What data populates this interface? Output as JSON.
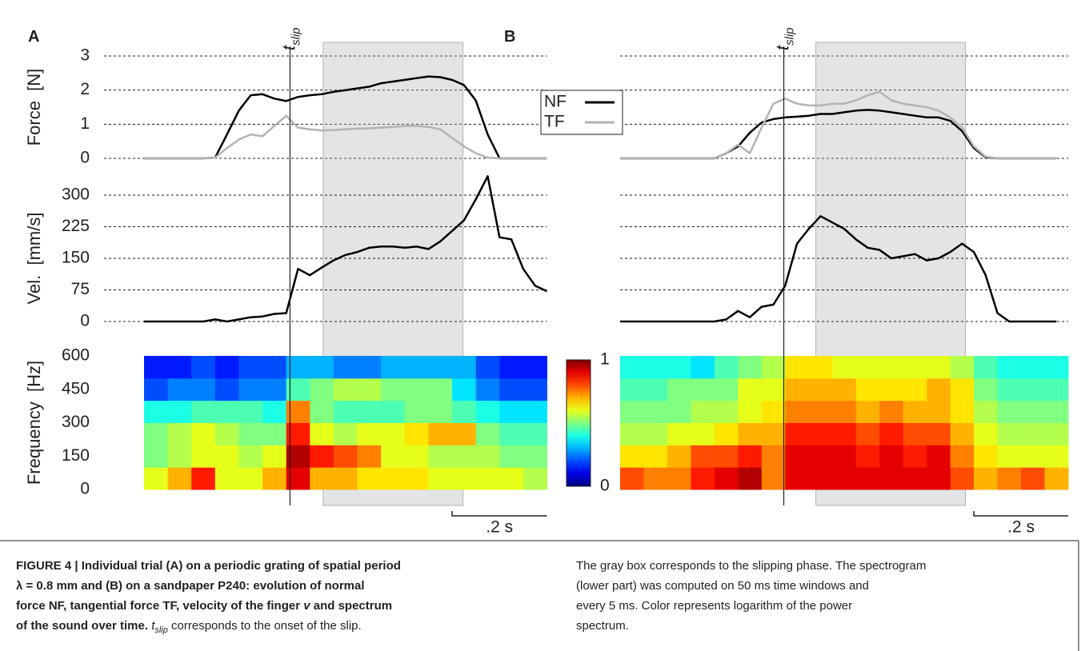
{
  "chart_data": [
    {
      "type": "line",
      "panel_label": "A",
      "ylabel": "Force  [N]",
      "x": [
        0,
        0.025,
        0.05,
        0.075,
        0.1,
        0.125,
        0.15,
        0.175,
        0.2,
        0.225,
        0.25,
        0.275,
        0.3,
        0.325,
        0.35,
        0.375,
        0.4,
        0.425,
        0.45,
        0.475,
        0.5,
        0.525,
        0.55,
        0.575,
        0.6,
        0.625,
        0.65,
        0.675,
        0.7,
        0.725,
        0.75,
        0.775,
        0.8,
        0.825,
        0.85
      ],
      "series": [
        {
          "name": "NF",
          "color": "#000000",
          "values": [
            0,
            0,
            0,
            0,
            0,
            0,
            0.02,
            0.7,
            1.4,
            1.85,
            1.88,
            1.75,
            1.68,
            1.8,
            1.85,
            1.88,
            1.95,
            2.0,
            2.05,
            2.1,
            2.2,
            2.25,
            2.3,
            2.35,
            2.4,
            2.38,
            2.3,
            2.15,
            1.7,
            0.7,
            0,
            0,
            0,
            0,
            0
          ]
        },
        {
          "name": "TF",
          "color": "#b3b3b3",
          "values": [
            0,
            0,
            0,
            0,
            0,
            0,
            0.02,
            0.3,
            0.55,
            0.7,
            0.65,
            0.95,
            1.25,
            0.9,
            0.85,
            0.82,
            0.83,
            0.85,
            0.87,
            0.88,
            0.9,
            0.92,
            0.95,
            0.95,
            0.92,
            0.85,
            0.6,
            0.35,
            0.15,
            0.02,
            0,
            0,
            0,
            0,
            0
          ]
        }
      ],
      "xlim": [
        0,
        0.85
      ],
      "ylim": [
        0,
        3
      ],
      "yticks": [
        0,
        1,
        2,
        3
      ],
      "grid": "dashed",
      "legend": "right",
      "tslip": {
        "x": 0.308,
        "label": [
          "t",
          "slip"
        ]
      },
      "slip_phase": [
        0.378,
        0.673
      ]
    },
    {
      "type": "line",
      "ylabel": "Vel.  [mm/s]",
      "x": [
        0,
        0.025,
        0.05,
        0.075,
        0.1,
        0.125,
        0.15,
        0.175,
        0.2,
        0.225,
        0.25,
        0.275,
        0.3,
        0.325,
        0.35,
        0.375,
        0.4,
        0.425,
        0.45,
        0.475,
        0.5,
        0.525,
        0.55,
        0.575,
        0.6,
        0.625,
        0.65,
        0.675,
        0.7,
        0.725,
        0.75,
        0.775,
        0.8,
        0.825,
        0.85
      ],
      "series": [
        {
          "color": "#000000",
          "values": [
            0,
            0,
            0,
            0,
            0,
            0,
            5,
            0,
            5,
            10,
            12,
            18,
            20,
            125,
            110,
            128,
            145,
            158,
            165,
            175,
            178,
            178,
            175,
            178,
            172,
            190,
            215,
            240,
            290,
            345,
            200,
            195,
            125,
            85,
            72
          ]
        }
      ],
      "xlim": [
        0,
        0.85
      ],
      "ylim": [
        0,
        300
      ],
      "yticks": [
        0,
        75,
        150,
        225,
        300
      ],
      "grid": "dashed"
    },
    {
      "type": "heatmap",
      "ylabel": "Frequency  [Hz]",
      "xbins": [
        0,
        0.05,
        0.1,
        0.15,
        0.2,
        0.25,
        0.3,
        0.35,
        0.4,
        0.45,
        0.5,
        0.55,
        0.6,
        0.65,
        0.7,
        0.75,
        0.8,
        0.85
      ],
      "ybins": [
        0,
        100,
        200,
        300,
        400,
        500,
        600
      ],
      "values": [
        [
          0.6,
          0.7,
          0.85,
          0.6,
          0.6,
          0.7,
          0.9,
          0.7,
          0.7,
          0.65,
          0.65,
          0.65,
          0.6,
          0.6,
          0.6,
          0.6,
          0.55
        ],
        [
          0.5,
          0.55,
          0.6,
          0.6,
          0.55,
          0.6,
          0.95,
          0.85,
          0.8,
          0.75,
          0.6,
          0.6,
          0.55,
          0.55,
          0.55,
          0.5,
          0.5
        ],
        [
          0.5,
          0.55,
          0.6,
          0.55,
          0.5,
          0.5,
          0.85,
          0.6,
          0.55,
          0.6,
          0.6,
          0.65,
          0.7,
          0.7,
          0.5,
          0.45,
          0.45
        ],
        [
          0.4,
          0.4,
          0.45,
          0.45,
          0.45,
          0.4,
          0.75,
          0.5,
          0.45,
          0.45,
          0.45,
          0.5,
          0.5,
          0.45,
          0.4,
          0.35,
          0.35
        ],
        [
          0.2,
          0.25,
          0.25,
          0.2,
          0.25,
          0.25,
          0.45,
          0.5,
          0.55,
          0.55,
          0.5,
          0.5,
          0.5,
          0.35,
          0.25,
          0.2,
          0.2
        ],
        [
          0.15,
          0.15,
          0.2,
          0.15,
          0.2,
          0.2,
          0.3,
          0.3,
          0.25,
          0.25,
          0.3,
          0.3,
          0.3,
          0.3,
          0.2,
          0.15,
          0.15
        ]
      ],
      "xlim": [
        0,
        0.85
      ],
      "ylim": [
        0,
        600
      ],
      "yticks": [
        0,
        150,
        300,
        450,
        600
      ],
      "colormap": "jet",
      "colorbar": {
        "clim": [
          0,
          1
        ],
        "ticks": [
          0,
          1
        ]
      },
      "scalebar": {
        "value": 0.2,
        "label": ".2 s"
      }
    },
    {
      "type": "line",
      "panel_label": "B",
      "x": [
        0,
        0.025,
        0.05,
        0.075,
        0.1,
        0.125,
        0.15,
        0.175,
        0.2,
        0.225,
        0.25,
        0.275,
        0.3,
        0.325,
        0.35,
        0.375,
        0.4,
        0.425,
        0.45,
        0.475,
        0.5,
        0.525,
        0.55,
        0.575,
        0.6,
        0.625,
        0.65,
        0.675,
        0.7,
        0.725,
        0.75,
        0.775,
        0.8,
        0.825,
        0.85,
        0.875,
        0.9,
        0.925
      ],
      "series": [
        {
          "color": "#000000",
          "values": [
            0,
            0,
            0,
            0,
            0,
            0,
            0,
            0,
            0,
            0.15,
            0.35,
            0.75,
            1.05,
            1.15,
            1.2,
            1.22,
            1.25,
            1.3,
            1.3,
            1.35,
            1.4,
            1.42,
            1.4,
            1.35,
            1.3,
            1.25,
            1.2,
            1.2,
            1.1,
            0.8,
            0.3,
            0.03,
            0,
            0,
            0,
            0,
            0,
            0
          ]
        },
        {
          "color": "#b3b3b3",
          "values": [
            0,
            0,
            0,
            0,
            0,
            0,
            0,
            0,
            0,
            0.15,
            0.4,
            0.15,
            0.9,
            1.6,
            1.75,
            1.6,
            1.55,
            1.55,
            1.6,
            1.6,
            1.7,
            1.85,
            1.95,
            1.7,
            1.6,
            1.55,
            1.5,
            1.4,
            1.2,
            0.9,
            0.35,
            0.05,
            0,
            0,
            0,
            0,
            0,
            0
          ]
        }
      ],
      "xlim": [
        0,
        0.95
      ],
      "ylim": [
        0,
        3
      ],
      "yticks": [
        0,
        1,
        2,
        3
      ],
      "ytick_labels": false,
      "grid": "dashed",
      "tslip": {
        "x": 0.347,
        "label": [
          "t",
          "slip"
        ]
      },
      "slip_phase": [
        0.415,
        0.732
      ]
    },
    {
      "type": "line",
      "x": [
        0,
        0.025,
        0.05,
        0.075,
        0.1,
        0.125,
        0.15,
        0.175,
        0.2,
        0.225,
        0.25,
        0.275,
        0.3,
        0.325,
        0.35,
        0.375,
        0.4,
        0.425,
        0.45,
        0.475,
        0.5,
        0.525,
        0.55,
        0.575,
        0.6,
        0.625,
        0.65,
        0.675,
        0.7,
        0.725,
        0.75,
        0.775,
        0.8,
        0.825,
        0.85,
        0.875,
        0.9,
        0.925
      ],
      "series": [
        {
          "color": "#000000",
          "values": [
            0,
            0,
            0,
            0,
            0,
            0,
            0,
            0,
            0,
            5,
            25,
            10,
            35,
            40,
            85,
            185,
            220,
            250,
            235,
            220,
            195,
            175,
            170,
            150,
            155,
            160,
            145,
            150,
            165,
            185,
            165,
            110,
            20,
            0,
            0,
            0,
            0,
            0
          ]
        }
      ],
      "xlim": [
        0,
        0.95
      ],
      "ylim": [
        0,
        300
      ],
      "yticks": [
        0,
        75,
        150,
        225,
        300
      ],
      "ytick_labels": false,
      "grid": "dashed"
    },
    {
      "type": "heatmap",
      "xbins": [
        0,
        0.05,
        0.1,
        0.15,
        0.2,
        0.25,
        0.3,
        0.35,
        0.4,
        0.45,
        0.5,
        0.55,
        0.6,
        0.65,
        0.7,
        0.75,
        0.8,
        0.85,
        0.9,
        0.95
      ],
      "ybins": [
        0,
        100,
        200,
        300,
        400,
        500,
        600
      ],
      "values": [
        [
          0.8,
          0.75,
          0.75,
          0.85,
          0.9,
          0.95,
          0.75,
          0.9,
          0.9,
          0.9,
          0.9,
          0.9,
          0.9,
          0.9,
          0.8,
          0.7,
          0.75,
          0.8,
          0.7
        ],
        [
          0.65,
          0.65,
          0.7,
          0.8,
          0.8,
          0.85,
          0.75,
          0.9,
          0.9,
          0.9,
          0.85,
          0.9,
          0.85,
          0.9,
          0.75,
          0.65,
          0.6,
          0.6,
          0.6
        ],
        [
          0.55,
          0.55,
          0.6,
          0.6,
          0.65,
          0.7,
          0.7,
          0.85,
          0.85,
          0.85,
          0.8,
          0.85,
          0.8,
          0.8,
          0.7,
          0.6,
          0.55,
          0.55,
          0.55
        ],
        [
          0.5,
          0.5,
          0.5,
          0.55,
          0.55,
          0.6,
          0.65,
          0.75,
          0.75,
          0.75,
          0.7,
          0.75,
          0.7,
          0.7,
          0.65,
          0.55,
          0.5,
          0.5,
          0.5
        ],
        [
          0.45,
          0.45,
          0.5,
          0.5,
          0.5,
          0.6,
          0.6,
          0.7,
          0.7,
          0.7,
          0.65,
          0.65,
          0.65,
          0.7,
          0.65,
          0.5,
          0.45,
          0.45,
          0.45
        ],
        [
          0.4,
          0.4,
          0.4,
          0.35,
          0.45,
          0.5,
          0.55,
          0.65,
          0.65,
          0.6,
          0.6,
          0.6,
          0.6,
          0.6,
          0.55,
          0.45,
          0.4,
          0.4,
          0.4
        ]
      ],
      "xlim": [
        0,
        0.95
      ],
      "ylim": [
        0,
        600
      ],
      "yticks": [
        0,
        150,
        300,
        450,
        600
      ],
      "ytick_labels": false,
      "colormap": "jet",
      "scalebar": {
        "value": 0.2,
        "label": ".2 s"
      }
    }
  ],
  "caption": {
    "left": [
      [
        "FIGURE 4 | Individual trial (A) on a periodic grating of spatial period"
      ],
      [
        "λ = 0.8 mm and (B) on a sandpaper P240: evolution of normal"
      ],
      [
        "force NF, tangential force TF, velocity of the finger ",
        "v",
        " and spectrum"
      ],
      [
        "of the sound over time. ",
        "t",
        "slip",
        " corresponds to the onset of the slip."
      ]
    ],
    "right": [
      "The gray box corresponds to the slipping phase. The spectrogram",
      "(lower part) was computed on 50 ms time windows and",
      "every 5 ms. Color represents logarithm of the power",
      "spectrum."
    ]
  }
}
